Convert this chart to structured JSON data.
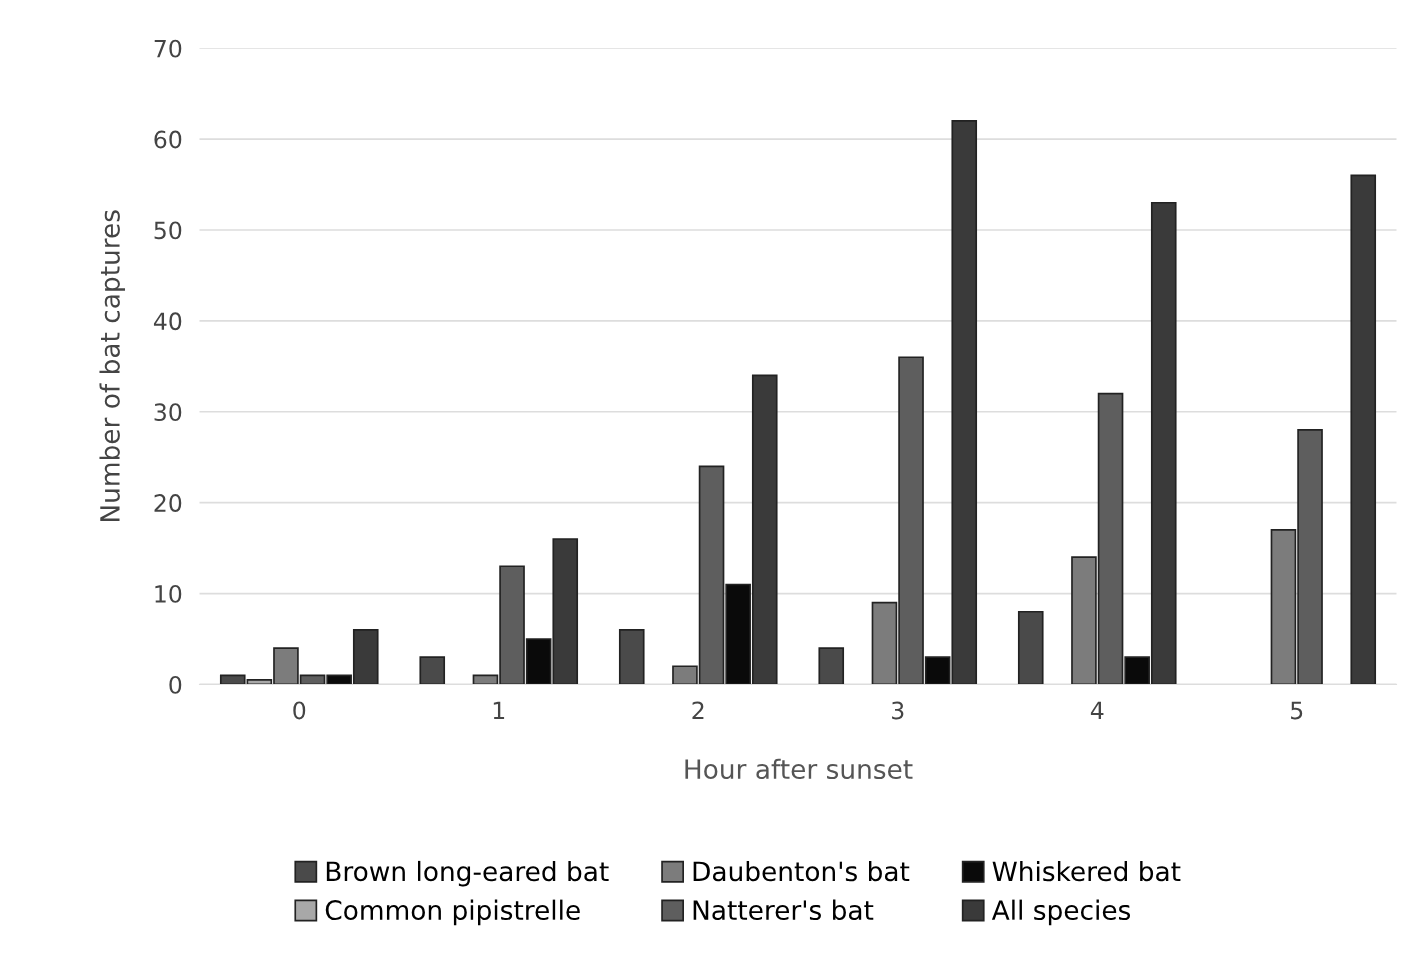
{
  "chart_data": {
    "type": "bar",
    "xlabel": "Hour after sunset",
    "ylabel": "Number of bat captures",
    "categories": [
      "0",
      "1",
      "2",
      "3",
      "4",
      "5"
    ],
    "series": [
      {
        "name": "Brown long-eared bat",
        "color": "#4a4a4a",
        "values": [
          1,
          3,
          6,
          4,
          8,
          null
        ]
      },
      {
        "name": "Common pipistrelle",
        "color": "#a8a8a8",
        "values": [
          0.5,
          null,
          null,
          null,
          null,
          null
        ]
      },
      {
        "name": "Daubenton's bat",
        "color": "#7c7c7c",
        "values": [
          4,
          1,
          2,
          9,
          14,
          17
        ]
      },
      {
        "name": "Natterer's bat",
        "color": "#5e5e5e",
        "values": [
          1,
          13,
          24,
          36,
          32,
          28
        ]
      },
      {
        "name": "Whiskered bat",
        "color": "#0a0a0a",
        "values": [
          1,
          5,
          11,
          3,
          3,
          null
        ]
      },
      {
        "name": "All species",
        "color": "#3a3a3a",
        "values": [
          6,
          16,
          34,
          62,
          53,
          56
        ]
      }
    ],
    "ylim": [
      0,
      70
    ],
    "yticks": [
      0,
      10,
      20,
      30,
      40,
      50,
      60,
      70
    ],
    "grid": "y",
    "legend": "bottom"
  }
}
